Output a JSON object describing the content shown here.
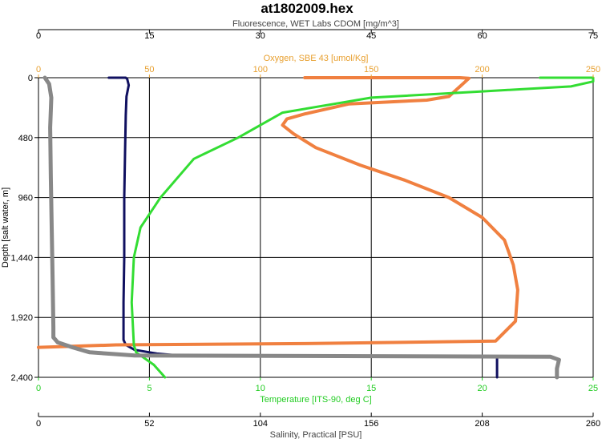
{
  "chart_data": {
    "type": "line",
    "title": "at1802009.hex",
    "grid": true,
    "y_axis": {
      "label": "Depth [salt water, m]",
      "lim": [
        0,
        2400
      ],
      "ticks": [
        0,
        480,
        960,
        1440,
        1920,
        2400
      ],
      "tick_labels": [
        "0",
        "480",
        "960",
        "1,440",
        "1,920",
        "2,400"
      ],
      "inverted": true
    },
    "x_axes": [
      {
        "id": "fluor",
        "position": "top-outer",
        "label": "Fluorescence, WET Labs CDOM [mg/m^3]",
        "lim": [
          0,
          75
        ],
        "ticks": [
          0,
          15,
          30,
          45,
          60,
          75
        ],
        "tick_labels": [
          "0",
          "15",
          "30",
          "45",
          "60",
          "75"
        ],
        "color": "#000000"
      },
      {
        "id": "oxy",
        "position": "top-inner",
        "label": "Oxygen, SBE 43 [umol/Kg]",
        "lim": [
          0,
          250
        ],
        "ticks": [
          0,
          50,
          100,
          150,
          200,
          250
        ],
        "tick_labels": [
          "0",
          "50",
          "100",
          "150",
          "200",
          "250"
        ],
        "color": "#e8a030"
      },
      {
        "id": "temp",
        "position": "bottom-inner",
        "label": "Temperature [ITS-90, deg C]",
        "lim": [
          0,
          25
        ],
        "ticks": [
          0,
          5,
          10,
          15,
          20,
          25
        ],
        "tick_labels": [
          "0",
          "5",
          "10",
          "15",
          "20",
          "25"
        ],
        "color": "#22cc22"
      },
      {
        "id": "sal",
        "position": "bottom-outer",
        "label": "Salinity, Practical [PSU]",
        "lim": [
          0,
          260
        ],
        "ticks": [
          0,
          52,
          104,
          156,
          208,
          260
        ],
        "tick_labels": [
          "0",
          "52",
          "104",
          "156",
          "208",
          "260"
        ],
        "color": "#000000"
      }
    ],
    "series": [
      {
        "axis": "fluor",
        "color": "#101060",
        "width": 3,
        "points": [
          [
            9.5,
            0
          ],
          [
            11.8,
            0
          ],
          [
            12,
            10
          ],
          [
            12.2,
            60
          ],
          [
            11.9,
            150
          ],
          [
            11.8,
            300
          ],
          [
            11.7,
            600
          ],
          [
            11.6,
            960
          ],
          [
            11.6,
            1440
          ],
          [
            11.5,
            1800
          ],
          [
            11.5,
            2100
          ],
          [
            11.8,
            2140
          ],
          [
            13,
            2180
          ],
          [
            16,
            2210
          ],
          [
            19,
            2225
          ],
          [
            29,
            2225
          ],
          [
            33,
            2232
          ],
          [
            55,
            2232
          ],
          [
            62,
            2234
          ],
          [
            62,
            2400
          ]
        ]
      },
      {
        "axis": "oxy",
        "color": "#f08040",
        "width": 4,
        "points": [
          [
            120,
            0
          ],
          [
            190,
            0
          ],
          [
            194,
            5
          ],
          [
            190,
            70
          ],
          [
            185,
            150
          ],
          [
            175,
            180
          ],
          [
            140,
            210
          ],
          [
            120,
            290
          ],
          [
            112,
            330
          ],
          [
            110,
            380
          ],
          [
            115,
            450
          ],
          [
            125,
            560
          ],
          [
            145,
            700
          ],
          [
            165,
            820
          ],
          [
            185,
            960
          ],
          [
            200,
            1120
          ],
          [
            210,
            1300
          ],
          [
            214,
            1500
          ],
          [
            216,
            1700
          ],
          [
            215,
            1950
          ],
          [
            206,
            2110
          ],
          [
            120,
            2130
          ],
          [
            35,
            2140
          ],
          [
            0,
            2160
          ]
        ]
      },
      {
        "axis": "temp",
        "color": "#33dd33",
        "width": 3,
        "points": [
          [
            22.6,
            0
          ],
          [
            25,
            0
          ],
          [
            25,
            30
          ],
          [
            24,
            70
          ],
          [
            20,
            110
          ],
          [
            15,
            160
          ],
          [
            11,
            280
          ],
          [
            9,
            480
          ],
          [
            7,
            650
          ],
          [
            5.5,
            960
          ],
          [
            4.6,
            1200
          ],
          [
            4.3,
            1440
          ],
          [
            4.2,
            1800
          ],
          [
            4.3,
            2140
          ],
          [
            4.4,
            2200
          ],
          [
            5.2,
            2300
          ],
          [
            5.7,
            2400
          ]
        ]
      },
      {
        "axis": "sal",
        "color": "#888888",
        "width": 5,
        "points": [
          [
            3,
            0
          ],
          [
            5,
            50
          ],
          [
            6,
            160
          ],
          [
            5.5,
            400
          ],
          [
            5.8,
            800
          ],
          [
            6.2,
            1200
          ],
          [
            6.6,
            1600
          ],
          [
            7,
            2000
          ],
          [
            7,
            2080
          ],
          [
            9,
            2120
          ],
          [
            16,
            2160
          ],
          [
            24,
            2200
          ],
          [
            45,
            2225
          ],
          [
            240,
            2235
          ],
          [
            244,
            2260
          ],
          [
            243,
            2330
          ],
          [
            243,
            2400
          ]
        ]
      }
    ]
  }
}
